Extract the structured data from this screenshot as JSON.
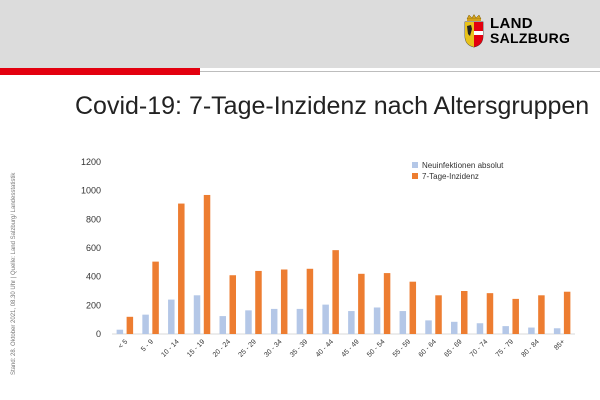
{
  "header": {
    "logo_line1": "LAND",
    "logo_line2": "SALZBURG"
  },
  "title": "Covid-19: 7-Tage-Inzidenz nach Altersgruppen",
  "side_note": "Stand: 28. Oktober 2021, 08.30 Uhr | Quelle: Land Salzburg/ Landesstatistik",
  "colors": {
    "series1": "#b4c7e7",
    "series2": "#ed7d31",
    "accent": "#e3000f"
  },
  "chart_data": {
    "type": "bar",
    "title": "",
    "xlabel": "",
    "ylabel": "",
    "ylim": [
      0,
      1200
    ],
    "yticks": [
      0,
      200,
      400,
      600,
      800,
      1000,
      1200
    ],
    "grid": false,
    "legend": "top-right",
    "categories": [
      "< 5",
      "5 - 9",
      "10 - 14",
      "15 - 19",
      "20 - 24",
      "25 - 29",
      "30 - 34",
      "35 - 39",
      "40 - 44",
      "45 - 49",
      "50 - 54",
      "55 - 59",
      "60 - 64",
      "65 - 69",
      "70 - 74",
      "75 - 79",
      "80 - 84",
      "85+"
    ],
    "series": [
      {
        "name": "Neuinfektionen absolut",
        "values": [
          30,
          135,
          240,
          270,
          125,
          165,
          175,
          175,
          205,
          160,
          185,
          160,
          95,
          85,
          75,
          55,
          45,
          40
        ]
      },
      {
        "name": "7-Tage-Inzidenz",
        "values": [
          120,
          505,
          910,
          970,
          410,
          440,
          450,
          455,
          585,
          420,
          425,
          365,
          270,
          300,
          285,
          245,
          270,
          295
        ]
      }
    ]
  }
}
